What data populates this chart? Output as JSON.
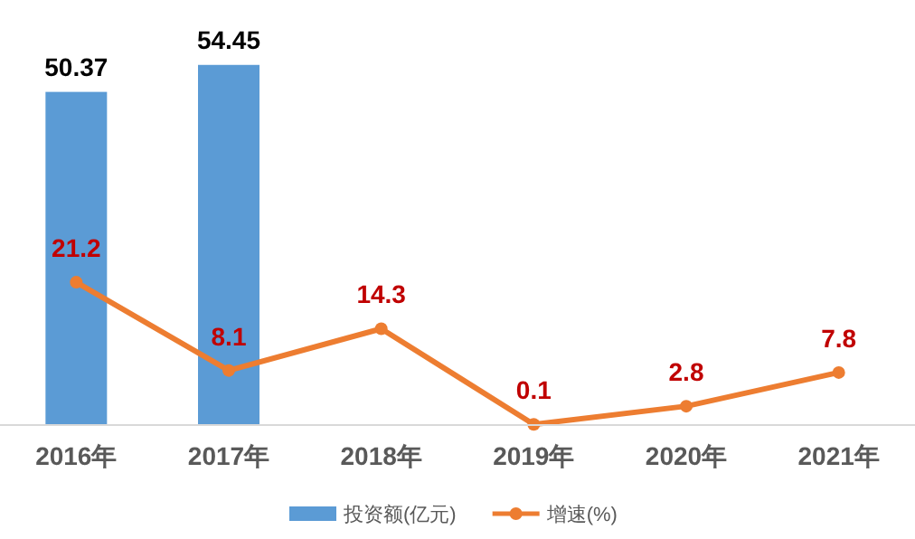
{
  "chart_data": {
    "type": "bar",
    "categories": [
      "2016年",
      "2017年",
      "2018年",
      "2019年",
      "2020年",
      "2021年"
    ],
    "series": [
      {
        "name": "投资额(亿元)",
        "color": "#5b9bd5",
        "values": [
          50.37,
          54.45,
          null,
          null,
          null,
          null
        ]
      },
      {
        "name": "增速(%)",
        "type": "line",
        "axis": "y2",
        "color": "#ed7d31",
        "marker": "circle",
        "values": [
          21.2,
          8.1,
          14.3,
          0.1,
          2.8,
          7.8
        ]
      }
    ],
    "data_labels": true,
    "legend": "bottom",
    "tick_labels": "x"
  }
}
